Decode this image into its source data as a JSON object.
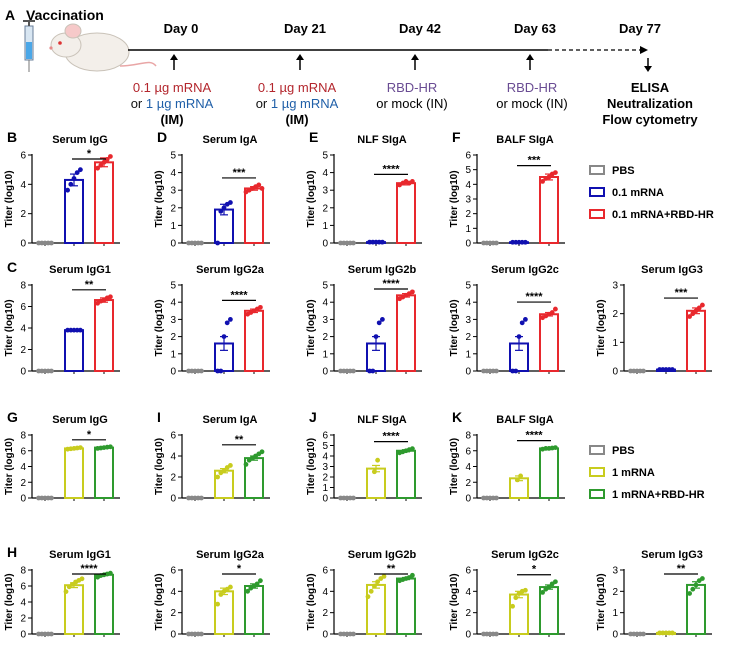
{
  "timeline": {
    "panel_letter": "A",
    "title": "Vaccination",
    "days": [
      "Day 0",
      "Day 21",
      "Day 42",
      "Day 63",
      "Day 77"
    ],
    "doses": [
      {
        "line1": "0.1 µg mRNA",
        "line2_prefix": "or ",
        "line2_dose": "1 µg mRNA",
        "line3": "(IM)"
      },
      {
        "line1": "0.1 µg mRNA",
        "line2_prefix": "or ",
        "line2_dose": "1 µg mRNA",
        "line3": "(IM)"
      },
      {
        "line1": "RBD-HR",
        "line2": "or mock (IN)"
      },
      {
        "line1": "RBD-HR",
        "line2": "or mock (IN)"
      }
    ],
    "readouts": [
      "ELISA",
      "Neutralization",
      "Flow cytometry"
    ],
    "colors": {
      "dose_01": "#b3262d",
      "dose_1": "#1f5fa8",
      "rbd": "#6a4c93"
    }
  },
  "legends": [
    {
      "entries": [
        {
          "label": "PBS",
          "color": "#888888"
        },
        {
          "label": "0.1 mRNA",
          "color": "#1010b0"
        },
        {
          "label": "0.1 mRNA+RBD-HR",
          "color": "#e8282d"
        }
      ]
    },
    {
      "entries": [
        {
          "label": "PBS",
          "color": "#888888"
        },
        {
          "label": "1 mRNA",
          "color": "#c8cc1e"
        },
        {
          "label": "1 mRNA+RBD-HR",
          "color": "#2e9a2e"
        }
      ]
    }
  ],
  "chart_data": [
    {
      "type": "bar",
      "panel": "B",
      "title": "Serum IgG",
      "ylabel": "Titer (log10)",
      "ylim": [
        0,
        6
      ],
      "yticks": [
        0,
        2,
        4,
        6
      ],
      "categories": [
        "PBS",
        "0.1 mRNA",
        "0.1 mRNA+RBD-HR"
      ],
      "values": [
        0,
        4.3,
        5.5
      ],
      "errors": [
        0,
        0.4,
        0.3
      ],
      "significance": "*",
      "colors": [
        "#888888",
        "#1010b0",
        "#e8282d"
      ],
      "points": [
        [
          0,
          0,
          0,
          0,
          0
        ],
        [
          3.6,
          4.0,
          4.4,
          4.8,
          5.0
        ],
        [
          5.1,
          5.3,
          5.5,
          5.7,
          5.9
        ]
      ]
    },
    {
      "type": "bar",
      "panel": "D",
      "title": "Serum IgA",
      "ylabel": "Titer (log10)",
      "ylim": [
        0,
        5
      ],
      "yticks": [
        0,
        1,
        2,
        3,
        4,
        5
      ],
      "categories": [
        "PBS",
        "0.1 mRNA",
        "0.1 mRNA+RBD-HR"
      ],
      "values": [
        0,
        1.9,
        3.1
      ],
      "errors": [
        0,
        0.3,
        0.1
      ],
      "significance": "***",
      "colors": [
        "#888888",
        "#1010b0",
        "#e8282d"
      ],
      "points": [
        [
          0,
          0,
          0,
          0,
          0
        ],
        [
          0,
          1.8,
          2.0,
          2.2,
          2.3
        ],
        [
          2.9,
          3.0,
          3.1,
          3.2,
          3.3,
          3.1
        ]
      ]
    },
    {
      "type": "bar",
      "panel": "E",
      "title": "NLF SIgA",
      "ylabel": "Titer (log10)",
      "ylim": [
        0,
        5
      ],
      "yticks": [
        0,
        1,
        2,
        3,
        4,
        5
      ],
      "categories": [
        "PBS",
        "0.1 mRNA",
        "0.1 mRNA+RBD-HR"
      ],
      "values": [
        0,
        0.05,
        3.4
      ],
      "errors": [
        0,
        0,
        0.1
      ],
      "significance": "****",
      "colors": [
        "#888888",
        "#1010b0",
        "#e8282d"
      ],
      "points": [
        [
          0,
          0,
          0,
          0,
          0
        ],
        [
          0.05,
          0.05,
          0.05,
          0.05,
          0.05
        ],
        [
          3.3,
          3.4,
          3.5,
          3.4,
          3.5
        ]
      ]
    },
    {
      "type": "bar",
      "panel": "F",
      "title": "BALF SIgA",
      "ylabel": "Titer (log10)",
      "ylim": [
        0,
        6
      ],
      "yticks": [
        0,
        1,
        2,
        3,
        4,
        5,
        6
      ],
      "categories": [
        "PBS",
        "0.1 mRNA",
        "0.1 mRNA+RBD-HR"
      ],
      "values": [
        0,
        0.05,
        4.5
      ],
      "errors": [
        0,
        0,
        0.2
      ],
      "significance": "***",
      "colors": [
        "#888888",
        "#1010b0",
        "#e8282d"
      ],
      "points": [
        [
          0,
          0,
          0,
          0,
          0
        ],
        [
          0.05,
          0.05,
          0.05,
          0.05,
          0.05
        ],
        [
          4.2,
          4.4,
          4.5,
          4.7,
          4.8
        ]
      ]
    },
    {
      "type": "bar",
      "panel": "C",
      "title": "Serum IgG1",
      "ylabel": "Titer (log10)",
      "ylim": [
        0,
        8
      ],
      "yticks": [
        0,
        2,
        4,
        6,
        8
      ],
      "categories": [
        "PBS",
        "0.1 mRNA",
        "0.1 mRNA+RBD-HR"
      ],
      "values": [
        0,
        3.8,
        6.6
      ],
      "errors": [
        0,
        0.05,
        0.2
      ],
      "significance": "**",
      "colors": [
        "#888888",
        "#1010b0",
        "#e8282d"
      ],
      "points": [
        [
          0,
          0,
          0,
          0,
          0
        ],
        [
          3.8,
          3.8,
          3.8,
          3.8,
          3.8
        ],
        [
          6.3,
          6.5,
          6.6,
          6.8,
          6.9
        ]
      ]
    },
    {
      "type": "bar",
      "panel": "",
      "title": "Serum IgG2a",
      "ylabel": "Titer (log10)",
      "ylim": [
        0,
        5
      ],
      "yticks": [
        0,
        1,
        2,
        3,
        4,
        5
      ],
      "categories": [
        "PBS",
        "0.1 mRNA",
        "0.1 mRNA+RBD-HR"
      ],
      "values": [
        0,
        1.6,
        3.5
      ],
      "errors": [
        0,
        0.4,
        0.1
      ],
      "significance": "****",
      "colors": [
        "#888888",
        "#1010b0",
        "#e8282d"
      ],
      "points": [
        [
          0,
          0,
          0,
          0,
          0
        ],
        [
          0,
          0,
          2.0,
          2.8,
          3.0
        ],
        [
          3.3,
          3.4,
          3.5,
          3.6,
          3.7
        ]
      ]
    },
    {
      "type": "bar",
      "panel": "",
      "title": "Serum IgG2b",
      "ylabel": "Titer (log10)",
      "ylim": [
        0,
        5
      ],
      "yticks": [
        0,
        1,
        2,
        3,
        4,
        5
      ],
      "categories": [
        "PBS",
        "0.1 mRNA",
        "0.1 mRNA+RBD-HR"
      ],
      "values": [
        0,
        1.6,
        4.4
      ],
      "errors": [
        0,
        0.4,
        0.1
      ],
      "significance": "****",
      "colors": [
        "#888888",
        "#1010b0",
        "#e8282d"
      ],
      "points": [
        [
          0,
          0,
          0,
          0,
          0
        ],
        [
          0,
          0,
          2.0,
          2.8,
          3.0
        ],
        [
          4.2,
          4.3,
          4.4,
          4.5,
          4.6
        ]
      ]
    },
    {
      "type": "bar",
      "panel": "",
      "title": "Serum IgG2c",
      "ylabel": "Titer (log10)",
      "ylim": [
        0,
        5
      ],
      "yticks": [
        0,
        1,
        2,
        3,
        4,
        5
      ],
      "categories": [
        "PBS",
        "0.1 mRNA",
        "0.1 mRNA+RBD-HR"
      ],
      "values": [
        0,
        1.6,
        3.3
      ],
      "errors": [
        0,
        0.4,
        0.1
      ],
      "significance": "****",
      "colors": [
        "#888888",
        "#1010b0",
        "#e8282d"
      ],
      "points": [
        [
          0,
          0,
          0,
          0,
          0
        ],
        [
          0,
          0,
          2.0,
          2.8,
          3.0
        ],
        [
          3.1,
          3.2,
          3.3,
          3.4,
          3.6
        ]
      ]
    },
    {
      "type": "bar",
      "panel": "",
      "title": "Serum IgG3",
      "ylabel": "Titer (log10)",
      "ylim": [
        0,
        3
      ],
      "yticks": [
        0,
        1,
        2,
        3
      ],
      "categories": [
        "PBS",
        "0.1 mRNA",
        "0.1 mRNA+RBD-HR"
      ],
      "values": [
        0,
        0.05,
        2.1
      ],
      "errors": [
        0,
        0,
        0.1
      ],
      "significance": "***",
      "colors": [
        "#888888",
        "#1010b0",
        "#e8282d"
      ],
      "points": [
        [
          0,
          0,
          0,
          0,
          0
        ],
        [
          0.05,
          0.05,
          0.05,
          0.05,
          0.05
        ],
        [
          1.9,
          2.0,
          2.1,
          2.2,
          2.3
        ]
      ]
    },
    {
      "type": "bar",
      "panel": "G",
      "title": "Serum IgG",
      "ylabel": "Titer (log10)",
      "ylim": [
        0,
        8
      ],
      "yticks": [
        0,
        2,
        4,
        6,
        8
      ],
      "categories": [
        "PBS",
        "1 mRNA",
        "1 mRNA+RBD-HR"
      ],
      "values": [
        0,
        6.3,
        6.4
      ],
      "errors": [
        0,
        0.05,
        0.05
      ],
      "significance": "*",
      "colors": [
        "#888888",
        "#c8cc1e",
        "#2e9a2e"
      ],
      "points": [
        [
          0,
          0,
          0,
          0,
          0
        ],
        [
          6.2,
          6.25,
          6.3,
          6.35,
          6.4
        ],
        [
          6.3,
          6.35,
          6.4,
          6.45,
          6.5
        ]
      ]
    },
    {
      "type": "bar",
      "panel": "I",
      "title": "Serum IgA",
      "ylabel": "Titer (log10)",
      "ylim": [
        0,
        6
      ],
      "yticks": [
        0,
        2,
        4,
        6
      ],
      "categories": [
        "PBS",
        "1 mRNA",
        "1 mRNA+RBD-HR"
      ],
      "values": [
        0,
        2.6,
        3.8
      ],
      "errors": [
        0,
        0.2,
        0.2
      ],
      "significance": "**",
      "colors": [
        "#888888",
        "#c8cc1e",
        "#2e9a2e"
      ],
      "points": [
        [
          0,
          0,
          0,
          0,
          0
        ],
        [
          2.0,
          2.4,
          2.6,
          2.9,
          3.1
        ],
        [
          3.2,
          3.6,
          3.8,
          4.0,
          4.2,
          4.4
        ]
      ]
    },
    {
      "type": "bar",
      "panel": "J",
      "title": "NLF SIgA",
      "ylabel": "Titer (log10)",
      "ylim": [
        0,
        6
      ],
      "yticks": [
        0,
        1,
        2,
        3,
        4,
        5,
        6
      ],
      "categories": [
        "PBS",
        "1 mRNA",
        "1 mRNA+RBD-HR"
      ],
      "values": [
        0,
        2.8,
        4.5
      ],
      "errors": [
        0,
        0.3,
        0.1
      ],
      "significance": "****",
      "colors": [
        "#888888",
        "#c8cc1e",
        "#2e9a2e"
      ],
      "points": [
        [
          0,
          0,
          0,
          0,
          0
        ],
        [
          2.5,
          3.6
        ],
        [
          4.3,
          4.4,
          4.5,
          4.6,
          4.7
        ]
      ]
    },
    {
      "type": "bar",
      "panel": "K",
      "title": "BALF SIgA",
      "ylabel": "Titer (log10)",
      "ylim": [
        0,
        8
      ],
      "yticks": [
        0,
        2,
        4,
        6,
        8
      ],
      "categories": [
        "PBS",
        "1 mRNA",
        "1 mRNA+RBD-HR"
      ],
      "values": [
        0,
        2.5,
        6.3
      ],
      "errors": [
        0,
        0.3,
        0.05
      ],
      "significance": "****",
      "colors": [
        "#888888",
        "#c8cc1e",
        "#2e9a2e"
      ],
      "points": [
        [
          0,
          0,
          0,
          0,
          0
        ],
        [
          2.3,
          2.8
        ],
        [
          6.2,
          6.3,
          6.3,
          6.35,
          6.4
        ]
      ]
    },
    {
      "type": "bar",
      "panel": "H",
      "title": "Serum IgG1",
      "ylabel": "Titer (log10)",
      "ylim": [
        0,
        8
      ],
      "yticks": [
        0,
        2,
        4,
        6,
        8
      ],
      "categories": [
        "PBS",
        "1 mRNA",
        "1 mRNA+RBD-HR"
      ],
      "values": [
        0,
        6.1,
        7.4
      ],
      "errors": [
        0,
        0.3,
        0.1
      ],
      "significance": "****",
      "colors": [
        "#888888",
        "#c8cc1e",
        "#2e9a2e"
      ],
      "points": [
        [
          0,
          0,
          0,
          0,
          0
        ],
        [
          5.3,
          5.9,
          6.2,
          6.5,
          6.7,
          6.9
        ],
        [
          7.1,
          7.3,
          7.4,
          7.5,
          7.6
        ]
      ]
    },
    {
      "type": "bar",
      "panel": "",
      "title": "Serum IgG2a",
      "ylabel": "Titer (log10)",
      "ylim": [
        0,
        6
      ],
      "yticks": [
        0,
        2,
        4,
        6
      ],
      "categories": [
        "PBS",
        "1 mRNA",
        "1 mRNA+RBD-HR"
      ],
      "values": [
        0,
        4.0,
        4.5
      ],
      "errors": [
        0,
        0.3,
        0.2
      ],
      "significance": "*",
      "colors": [
        "#888888",
        "#c8cc1e",
        "#2e9a2e"
      ],
      "points": [
        [
          0,
          0,
          0,
          0,
          0
        ],
        [
          2.8,
          3.7,
          4.0,
          4.2,
          4.4
        ],
        [
          4.0,
          4.3,
          4.5,
          4.7,
          5.0
        ]
      ]
    },
    {
      "type": "bar",
      "panel": "",
      "title": "Serum IgG2b",
      "ylabel": "Titer (log10)",
      "ylim": [
        0,
        6
      ],
      "yticks": [
        0,
        2,
        4,
        6
      ],
      "categories": [
        "PBS",
        "1 mRNA",
        "1 mRNA+RBD-HR"
      ],
      "values": [
        0,
        4.6,
        5.2
      ],
      "errors": [
        0,
        0.3,
        0.1
      ],
      "significance": "**",
      "colors": [
        "#888888",
        "#c8cc1e",
        "#2e9a2e"
      ],
      "points": [
        [
          0,
          0,
          0,
          0,
          0
        ],
        [
          3.5,
          4.0,
          4.5,
          4.9,
          5.2,
          5.4
        ],
        [
          5.0,
          5.1,
          5.2,
          5.3,
          5.5
        ]
      ]
    },
    {
      "type": "bar",
      "panel": "",
      "title": "Serum IgG2c",
      "ylabel": "Titer (log10)",
      "ylim": [
        0,
        6
      ],
      "yticks": [
        0,
        2,
        4,
        6
      ],
      "categories": [
        "PBS",
        "1 mRNA",
        "1 mRNA+RBD-HR"
      ],
      "values": [
        0,
        3.7,
        4.4
      ],
      "errors": [
        0,
        0.3,
        0.2
      ],
      "significance": "*",
      "colors": [
        "#888888",
        "#c8cc1e",
        "#2e9a2e"
      ],
      "points": [
        [
          0,
          0,
          0,
          0,
          0
        ],
        [
          2.6,
          3.4,
          3.8,
          4.0,
          4.1
        ],
        [
          3.9,
          4.2,
          4.4,
          4.7,
          4.9
        ]
      ]
    },
    {
      "type": "bar",
      "panel": "",
      "title": "Serum IgG3",
      "ylabel": "Titer (log10)",
      "ylim": [
        0,
        3
      ],
      "yticks": [
        0,
        1,
        2,
        3
      ],
      "categories": [
        "PBS",
        "1 mRNA",
        "1 mRNA+RBD-HR"
      ],
      "values": [
        0,
        0.05,
        2.3
      ],
      "errors": [
        0,
        0,
        0.15
      ],
      "significance": "**",
      "colors": [
        "#888888",
        "#c8cc1e",
        "#2e9a2e"
      ],
      "points": [
        [
          0,
          0,
          0,
          0,
          0
        ],
        [
          0.05,
          0.05,
          0.05,
          0.05,
          0.05
        ],
        [
          1.9,
          2.1,
          2.3,
          2.5,
          2.6
        ]
      ]
    }
  ]
}
